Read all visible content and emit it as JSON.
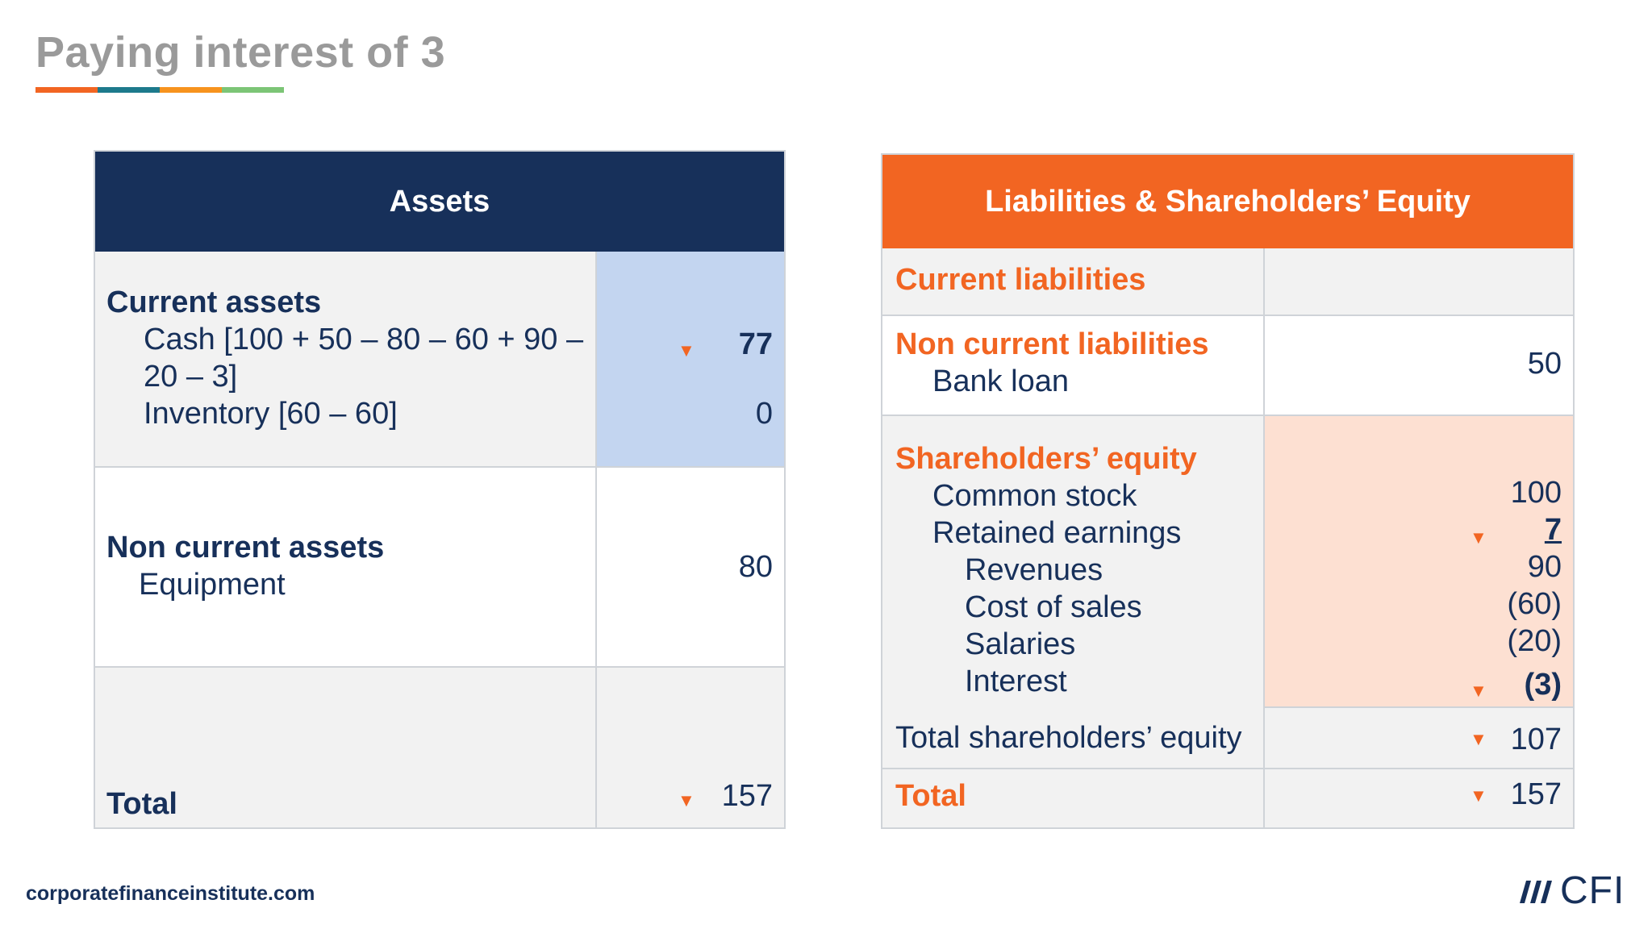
{
  "title": "Paying interest of 3",
  "title_bar_colors": [
    "#f26522",
    "#1d7a8c",
    "#f7931e",
    "#7cc576"
  ],
  "colors": {
    "navy": "#17305a",
    "orange": "#f26522",
    "assets_highlight": "#c3d5f0",
    "equity_highlight": "#fde0d2",
    "cell_gray": "#f2f2f2"
  },
  "assets": {
    "header": "Assets",
    "current_assets": {
      "heading": "Current assets",
      "cash_line1": "Cash [100 + 50 – 80 – 60 + 90 –",
      "cash_line2": "20 – 3]",
      "cash_value": "77",
      "inventory": "Inventory [60 – 60]",
      "inventory_value": "0"
    },
    "non_current_assets": {
      "heading": "Non current assets",
      "equipment": "Equipment",
      "equipment_value": "80"
    },
    "total_label": "Total",
    "total_value": "157"
  },
  "liabilities": {
    "header": "Liabilities & Shareholders’ Equity",
    "current_liabilities": "Current liabilities",
    "non_current": {
      "heading": "Non current liabilities",
      "bank_loan": "Bank loan",
      "bank_loan_value": "50"
    },
    "equity": {
      "heading": "Shareholders’ equity",
      "common_stock": "Common stock",
      "common_stock_value": "100",
      "retained_earnings": "Retained earnings",
      "retained_earnings_value": "7",
      "revenues": "Revenues",
      "revenues_value": "90",
      "cost_of_sales": "Cost of sales",
      "cost_of_sales_value": "(60)",
      "salaries": "Salaries",
      "salaries_value": "(20)",
      "interest": "Interest",
      "interest_value": "(3)"
    },
    "total_equity_label": "Total shareholders’ equity",
    "total_equity_value": "107",
    "total_label": "Total",
    "total_value": "157"
  },
  "footer": {
    "url": "corporatefinanceinstitute.com",
    "logo_text": "CFI"
  }
}
